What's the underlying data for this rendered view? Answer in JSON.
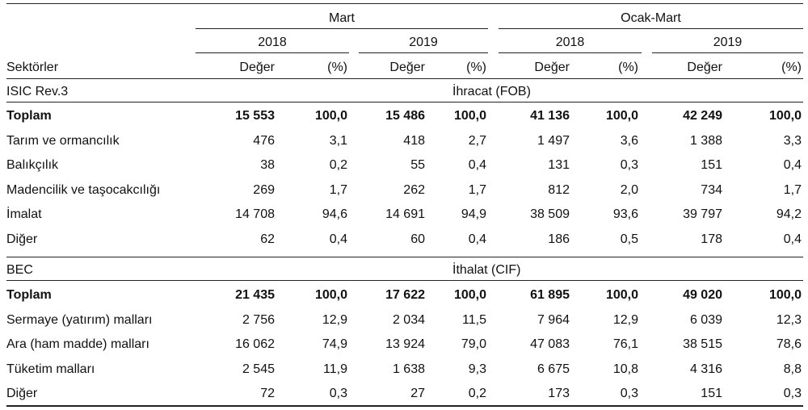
{
  "header": {
    "group1": "Mart",
    "group2": "Ocak-Mart",
    "years": [
      "2018",
      "2019",
      "2018",
      "2019"
    ],
    "row_label": "Sektörler",
    "col_value": "Değer",
    "col_pct": "(%)"
  },
  "export": {
    "classification": "ISIC  Rev.3",
    "title": "İhracat (FOB)",
    "rows": [
      {
        "label": "Toplam",
        "bold": true,
        "v": [
          "15 553",
          "100,0",
          "15 486",
          "100,0",
          "41 136",
          "100,0",
          "42 249",
          "100,0"
        ]
      },
      {
        "label": "Tarım ve ormancılık",
        "v": [
          "476",
          "3,1",
          "418",
          "2,7",
          "1 497",
          "3,6",
          "1 388",
          "3,3"
        ]
      },
      {
        "label": "Balıkçılık",
        "v": [
          "38",
          "0,2",
          "55",
          "0,4",
          "131",
          "0,3",
          "151",
          "0,4"
        ]
      },
      {
        "label": "Madencilik ve taşocakcılığı",
        "v": [
          "269",
          "1,7",
          "262",
          "1,7",
          "812",
          "2,0",
          "734",
          "1,7"
        ]
      },
      {
        "label": "İmalat",
        "v": [
          "14 708",
          "94,6",
          "14 691",
          "94,9",
          "38 509",
          "93,6",
          "39 797",
          "94,2"
        ]
      },
      {
        "label": "Diğer",
        "v": [
          "62",
          "0,4",
          "60",
          "0,4",
          "186",
          "0,5",
          "178",
          "0,4"
        ]
      }
    ]
  },
  "import": {
    "classification": "BEC",
    "title": "İthalat (CIF)",
    "rows": [
      {
        "label": "Toplam",
        "bold": true,
        "v": [
          "21 435",
          "100,0",
          "17 622",
          "100,0",
          "61 895",
          "100,0",
          "49 020",
          "100,0"
        ]
      },
      {
        "label": "Sermaye (yatırım) malları",
        "v": [
          "2 756",
          "12,9",
          "2 034",
          "11,5",
          "7 964",
          "12,9",
          "6 039",
          "12,3"
        ]
      },
      {
        "label": "Ara (ham madde) malları",
        "v": [
          "16 062",
          "74,9",
          "13 924",
          "79,0",
          "47 083",
          "76,1",
          "38 515",
          "78,6"
        ]
      },
      {
        "label": "Tüketim malları",
        "v": [
          "2 545",
          "11,9",
          "1 638",
          "9,3",
          "6 675",
          "10,8",
          "4 316",
          "8,8"
        ]
      },
      {
        "label": "Diğer",
        "v": [
          "72",
          "0,3",
          "27",
          "0,2",
          "173",
          "0,3",
          "151",
          "0,3"
        ]
      }
    ]
  }
}
